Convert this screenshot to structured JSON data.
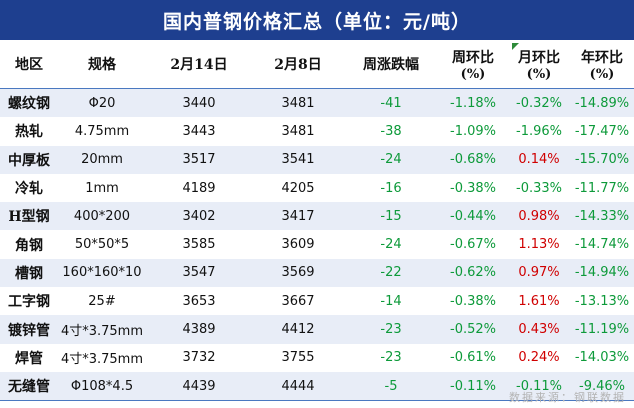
{
  "title": "国内普钢价格汇总（单位：元/吨）",
  "headers": {
    "region": "地区",
    "spec": "规格",
    "date1": "2月14日",
    "date2": "2月8日",
    "weekly_change": "周涨跌幅",
    "wow_line1": "周环比",
    "wow_line2": "(%)",
    "mom_line1": "月环比",
    "mom_line2": "(%)",
    "yoy_line1": "年环比",
    "yoy_line2": "(%)"
  },
  "rows": [
    {
      "region": "螺纹钢",
      "spec": "Φ20",
      "p1": "3440",
      "p2": "3481",
      "chg": "-41",
      "wow": "-1.18%",
      "mom": "-0.32%",
      "yoy": "-14.89%",
      "mom_sign": "neg"
    },
    {
      "region": "热轧",
      "spec": "4.75mm",
      "p1": "3443",
      "p2": "3481",
      "chg": "-38",
      "wow": "-1.09%",
      "mom": "-1.96%",
      "yoy": "-17.47%",
      "mom_sign": "neg"
    },
    {
      "region": "中厚板",
      "spec": "20mm",
      "p1": "3517",
      "p2": "3541",
      "chg": "-24",
      "wow": "-0.68%",
      "mom": "0.14%",
      "yoy": "-15.70%",
      "mom_sign": "pos"
    },
    {
      "region": "冷轧",
      "spec": "1mm",
      "p1": "4189",
      "p2": "4205",
      "chg": "-16",
      "wow": "-0.38%",
      "mom": "-0.33%",
      "yoy": "-11.77%",
      "mom_sign": "neg"
    },
    {
      "region": "H型钢",
      "spec": "400*200",
      "p1": "3402",
      "p2": "3417",
      "chg": "-15",
      "wow": "-0.44%",
      "mom": "0.98%",
      "yoy": "-14.33%",
      "mom_sign": "pos"
    },
    {
      "region": "角钢",
      "spec": "50*50*5",
      "p1": "3585",
      "p2": "3609",
      "chg": "-24",
      "wow": "-0.67%",
      "mom": "1.13%",
      "yoy": "-14.74%",
      "mom_sign": "pos"
    },
    {
      "region": "槽钢",
      "spec": "160*160*10",
      "p1": "3547",
      "p2": "3569",
      "chg": "-22",
      "wow": "-0.62%",
      "mom": "0.97%",
      "yoy": "-14.94%",
      "mom_sign": "pos"
    },
    {
      "region": "工字钢",
      "spec": "25#",
      "p1": "3653",
      "p2": "3667",
      "chg": "-14",
      "wow": "-0.38%",
      "mom": "1.61%",
      "yoy": "-13.13%",
      "mom_sign": "pos"
    },
    {
      "region": "镀锌管",
      "spec": "4寸*3.75mm",
      "p1": "4389",
      "p2": "4412",
      "chg": "-23",
      "wow": "-0.52%",
      "mom": "0.43%",
      "yoy": "-11.19%",
      "mom_sign": "pos"
    },
    {
      "region": "焊管",
      "spec": "4寸*3.75mm",
      "p1": "3732",
      "p2": "3755",
      "chg": "-23",
      "wow": "-0.61%",
      "mom": "0.24%",
      "yoy": "-14.03%",
      "mom_sign": "pos"
    },
    {
      "region": "无缝管",
      "spec": "Φ108*4.5",
      "p1": "4439",
      "p2": "4444",
      "chg": "-5",
      "wow": "-0.11%",
      "mom": "-0.11%",
      "yoy": "-9.46%",
      "mom_sign": "neg"
    }
  ],
  "source": "数据来源：钢联数据",
  "colors": {
    "title_bg": "#1e3f8f",
    "stripe": "#e8edf7",
    "positive": "#d00000",
    "negative": "#0d9a3a"
  }
}
